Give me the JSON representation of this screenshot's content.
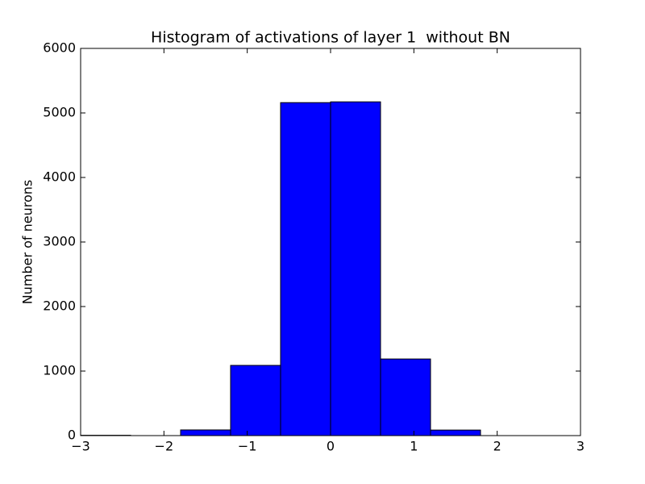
{
  "chart_data": {
    "type": "histogram",
    "title": "Histogram of activations of layer 1  without BN",
    "y_label": "Number of neurons",
    "bins": [
      -3,
      -2.4,
      -1.8,
      -1.2,
      -0.6,
      0,
      0.6,
      1.2,
      1.8,
      2.4,
      3
    ],
    "values": [
      5,
      0,
      88,
      1088,
      5160,
      5172,
      1187,
      86,
      0,
      0
    ],
    "color": "#0000ff",
    "edgecolor": "#000000",
    "xlim": [
      -3,
      3
    ],
    "xticks": [
      {
        "value": -3,
        "label": "−3"
      },
      {
        "value": -2,
        "label": "−2"
      },
      {
        "value": -1,
        "label": "−1"
      },
      0,
      1,
      2,
      3
    ],
    "ylim": [
      0,
      6000
    ],
    "yticks": [
      0,
      1000,
      2000,
      3000,
      4000,
      5000,
      6000
    ],
    "grid": false
  }
}
